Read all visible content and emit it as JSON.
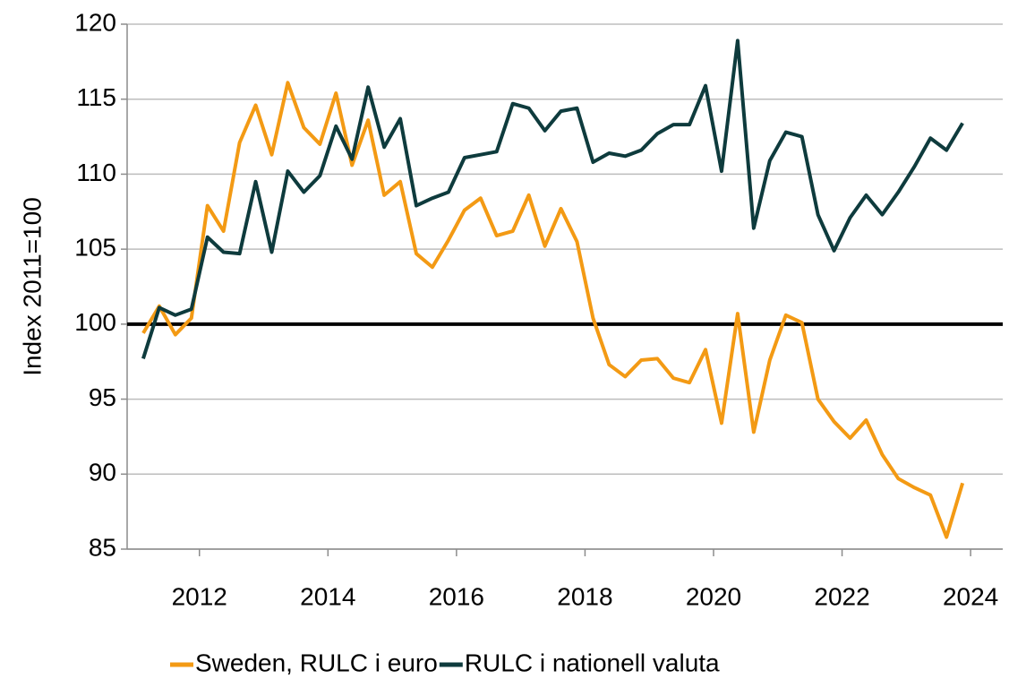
{
  "chart_data": {
    "type": "line",
    "ylabel": "Index 2011=100",
    "x": [
      2011.125,
      2011.375,
      2011.625,
      2011.875,
      2012.125,
      2012.375,
      2012.625,
      2012.875,
      2013.125,
      2013.375,
      2013.625,
      2013.875,
      2014.125,
      2014.375,
      2014.625,
      2014.875,
      2015.125,
      2015.375,
      2015.625,
      2015.875,
      2016.125,
      2016.375,
      2016.625,
      2016.875,
      2017.125,
      2017.375,
      2017.625,
      2017.875,
      2018.125,
      2018.375,
      2018.625,
      2018.875,
      2019.125,
      2019.375,
      2019.625,
      2019.875,
      2020.125,
      2020.375,
      2020.625,
      2020.875,
      2021.125,
      2021.375,
      2021.625,
      2021.875,
      2022.125,
      2022.375,
      2022.625,
      2022.875,
      2023.125,
      2023.375,
      2023.625,
      2023.875
    ],
    "series": [
      {
        "name": "Sweden, RULC i euro",
        "color": "#f39a14",
        "values": [
          99.4,
          101.2,
          99.3,
          100.4,
          107.9,
          106.2,
          112.1,
          114.6,
          111.3,
          116.1,
          113.1,
          112.0,
          115.4,
          110.6,
          113.6,
          108.6,
          109.5,
          104.7,
          103.8,
          105.6,
          107.6,
          108.4,
          105.9,
          106.2,
          108.6,
          105.2,
          107.7,
          105.5,
          100.4,
          97.3,
          96.5,
          97.6,
          97.7,
          96.4,
          96.1,
          98.3,
          93.4,
          100.7,
          92.8,
          97.6,
          100.6,
          100.1,
          95.0,
          93.5,
          92.4,
          93.6,
          91.3,
          89.7,
          89.1,
          88.6,
          85.8,
          89.4
        ]
      },
      {
        "name": "RULC i nationell valuta",
        "color": "#0e3b3d",
        "values": [
          97.7,
          101.1,
          100.6,
          101.0,
          105.8,
          104.8,
          104.7,
          109.5,
          104.8,
          110.2,
          108.8,
          109.9,
          113.2,
          111.0,
          115.8,
          111.8,
          113.7,
          107.9,
          108.4,
          108.8,
          111.1,
          111.3,
          111.5,
          114.7,
          114.4,
          112.9,
          114.2,
          114.4,
          110.8,
          111.4,
          111.2,
          111.6,
          112.7,
          113.3,
          113.3,
          115.9,
          110.2,
          118.9,
          106.4,
          110.9,
          112.8,
          112.5,
          107.3,
          104.9,
          107.1,
          108.6,
          107.3,
          108.8,
          110.5,
          112.4,
          111.6,
          113.4
        ]
      }
    ],
    "xlim": [
      2010.875,
      2024.5
    ],
    "xticks": [
      2012,
      2014,
      2016,
      2018,
      2020,
      2022,
      2024
    ],
    "ylim": [
      85,
      120
    ],
    "yticks": [
      85,
      90,
      95,
      100,
      105,
      110,
      115,
      120
    ],
    "reference_line": 100,
    "grid": true,
    "legend": "bottom"
  }
}
